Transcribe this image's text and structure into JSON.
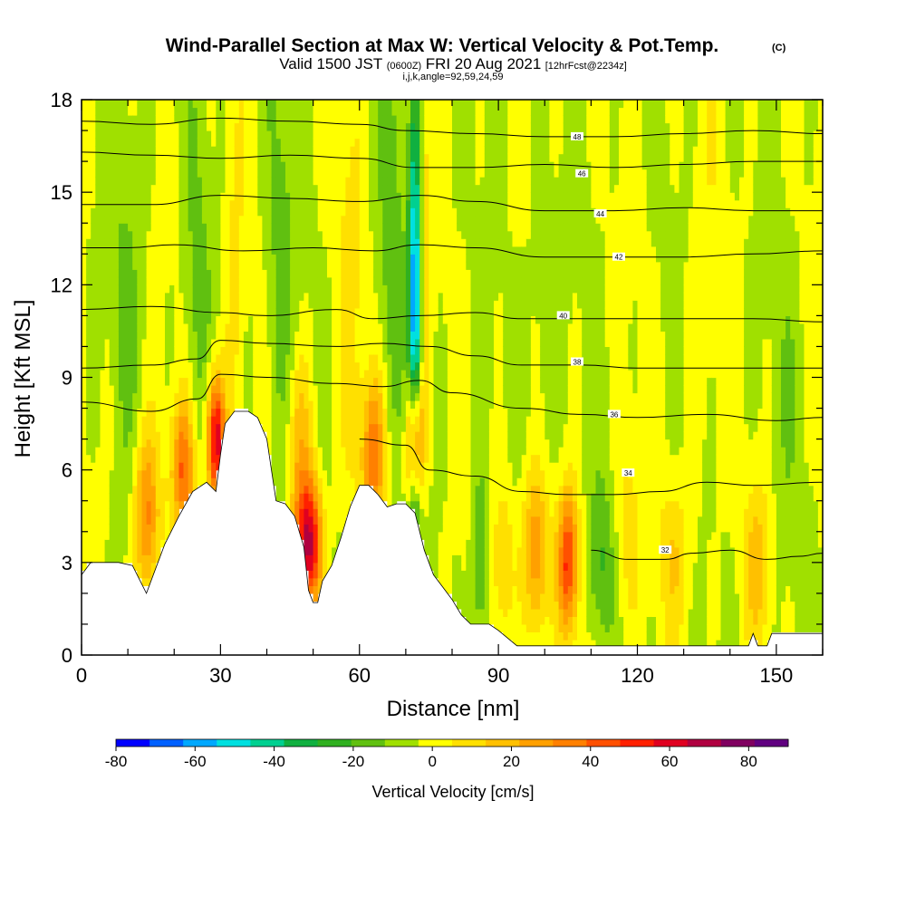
{
  "title": {
    "main": "Wind-Parallel Section at Max W: Vertical Velocity & Pot.Temp.",
    "main_suffix": "(C)",
    "valid_a": "Valid 1500 JST",
    "valid_b": "(0600Z)",
    "valid_c": "FRI 20 Aug 2021",
    "valid_d": "[12hrFcst@2234z]",
    "indices": "i,j,k,angle=92,59,24,59"
  },
  "colorbar": {
    "label": "Vertical Velocity [cm/s]",
    "ticks": [
      "-80",
      "-60",
      "-40",
      "-20",
      "0",
      "20",
      "40",
      "60",
      "80"
    ],
    "colors": [
      "#0000ff",
      "#0060ff",
      "#00a8ff",
      "#00e0e0",
      "#00d090",
      "#10b040",
      "#30b020",
      "#60c010",
      "#a0e000",
      "#ffff00",
      "#ffe000",
      "#ffc000",
      "#ffa000",
      "#ff8000",
      "#ff5000",
      "#ff2000",
      "#e00020",
      "#b00040",
      "#800060",
      "#600080"
    ]
  },
  "chart_data": {
    "type": "heatmap",
    "title": "Wind-Parallel Section at Max W: Vertical Velocity & Pot.Temp.",
    "xlabel": "Distance [nm]",
    "ylabel": "Height [Kft MSL]",
    "xlim": [
      0,
      160
    ],
    "ylim": [
      0,
      18
    ],
    "x_ticks": [
      "0",
      "30",
      "60",
      "90",
      "120",
      "150"
    ],
    "y_ticks": [
      "0",
      "3",
      "6",
      "9",
      "12",
      "15",
      "18"
    ],
    "fill_variable": "vertical velocity (cm/s)",
    "contour_variable": "potential temperature (C)",
    "terrain": [
      [
        0,
        2.6
      ],
      [
        2,
        3.0
      ],
      [
        8,
        3.0
      ],
      [
        11,
        2.9
      ],
      [
        14,
        2.0
      ],
      [
        16,
        2.8
      ],
      [
        18,
        3.6
      ],
      [
        21,
        4.5
      ],
      [
        24,
        5.3
      ],
      [
        27,
        5.6
      ],
      [
        29,
        5.3
      ],
      [
        30,
        6.5
      ],
      [
        31,
        7.5
      ],
      [
        33,
        7.9
      ],
      [
        36,
        7.9
      ],
      [
        38,
        7.7
      ],
      [
        40,
        7.0
      ],
      [
        41,
        6.0
      ],
      [
        42,
        5.0
      ],
      [
        44,
        4.9
      ],
      [
        46,
        4.5
      ],
      [
        48,
        3.5
      ],
      [
        49,
        2.1
      ],
      [
        50,
        1.7
      ],
      [
        51,
        1.7
      ],
      [
        52,
        2.4
      ],
      [
        54,
        2.9
      ],
      [
        56,
        3.8
      ],
      [
        58,
        4.8
      ],
      [
        60,
        5.5
      ],
      [
        62,
        5.5
      ],
      [
        64,
        5.2
      ],
      [
        66,
        4.8
      ],
      [
        68,
        4.9
      ],
      [
        70,
        4.9
      ],
      [
        72,
        4.6
      ],
      [
        74,
        3.4
      ],
      [
        76,
        2.6
      ],
      [
        78,
        2.2
      ],
      [
        80,
        1.8
      ],
      [
        82,
        1.3
      ],
      [
        84,
        1.0
      ],
      [
        86,
        1.0
      ],
      [
        88,
        1.0
      ],
      [
        90,
        0.8
      ],
      [
        94,
        0.3
      ],
      [
        100,
        0.3
      ],
      [
        120,
        0.3
      ],
      [
        144,
        0.3
      ],
      [
        145,
        0.7
      ],
      [
        146,
        0.3
      ],
      [
        148,
        0.3
      ],
      [
        149,
        0.7
      ],
      [
        160,
        0.7
      ]
    ],
    "theta_contours": [
      {
        "label": "32",
        "points": [
          [
            110,
            3.4
          ],
          [
            118,
            3.1
          ],
          [
            126,
            3.1
          ],
          [
            132,
            3.3
          ],
          [
            140,
            3.4
          ],
          [
            148,
            3.1
          ],
          [
            155,
            3.2
          ],
          [
            160,
            3.3
          ]
        ],
        "label_at": [
          126,
          3.4
        ]
      },
      {
        "label": "34",
        "points": [
          [
            60,
            7.0
          ],
          [
            70,
            6.8
          ],
          [
            75,
            6.0
          ],
          [
            85,
            5.8
          ],
          [
            95,
            5.3
          ],
          [
            105,
            5.2
          ],
          [
            115,
            5.2
          ],
          [
            125,
            5.3
          ],
          [
            135,
            5.6
          ],
          [
            145,
            5.5
          ],
          [
            160,
            5.6
          ]
        ],
        "label_at": [
          118,
          5.9
        ]
      },
      {
        "label": "36",
        "points": [
          [
            0,
            8.2
          ],
          [
            15,
            7.9
          ],
          [
            25,
            8.3
          ],
          [
            30,
            9.1
          ],
          [
            40,
            9.0
          ],
          [
            55,
            8.8
          ],
          [
            65,
            8.7
          ],
          [
            73,
            8.9
          ],
          [
            80,
            8.5
          ],
          [
            95,
            8.0
          ],
          [
            108,
            7.8
          ],
          [
            120,
            7.7
          ],
          [
            135,
            7.8
          ],
          [
            150,
            7.6
          ],
          [
            160,
            7.7
          ]
        ],
        "label_at": [
          115,
          7.8
        ]
      },
      {
        "label": "38",
        "points": [
          [
            0,
            9.3
          ],
          [
            15,
            9.4
          ],
          [
            25,
            9.6
          ],
          [
            30,
            10.2
          ],
          [
            40,
            10.1
          ],
          [
            55,
            10.0
          ],
          [
            65,
            10.1
          ],
          [
            75,
            10.0
          ],
          [
            85,
            9.7
          ],
          [
            95,
            9.4
          ],
          [
            108,
            9.4
          ],
          [
            120,
            9.3
          ],
          [
            140,
            9.3
          ],
          [
            160,
            9.3
          ]
        ],
        "label_at": [
          107,
          9.5
        ]
      },
      {
        "label": "40",
        "points": [
          [
            0,
            11.2
          ],
          [
            15,
            11.3
          ],
          [
            30,
            11.1
          ],
          [
            40,
            11.0
          ],
          [
            55,
            11.2
          ],
          [
            63,
            10.9
          ],
          [
            73,
            11.0
          ],
          [
            85,
            11.1
          ],
          [
            95,
            10.9
          ],
          [
            108,
            10.9
          ],
          [
            125,
            10.9
          ],
          [
            145,
            10.9
          ],
          [
            160,
            10.8
          ]
        ],
        "label_at": [
          104,
          11.0
        ]
      },
      {
        "label": "42",
        "points": [
          [
            0,
            13.2
          ],
          [
            10,
            13.2
          ],
          [
            20,
            13.3
          ],
          [
            35,
            13.1
          ],
          [
            50,
            13.2
          ],
          [
            63,
            13.1
          ],
          [
            73,
            13.3
          ],
          [
            85,
            13.2
          ],
          [
            100,
            12.9
          ],
          [
            115,
            12.9
          ],
          [
            130,
            12.9
          ],
          [
            145,
            13.0
          ],
          [
            160,
            13.1
          ]
        ],
        "label_at": [
          116,
          12.9
        ]
      },
      {
        "label": "44",
        "points": [
          [
            0,
            14.6
          ],
          [
            15,
            14.6
          ],
          [
            30,
            14.9
          ],
          [
            45,
            14.8
          ],
          [
            60,
            14.7
          ],
          [
            73,
            14.9
          ],
          [
            85,
            14.7
          ],
          [
            100,
            14.4
          ],
          [
            115,
            14.4
          ],
          [
            130,
            14.5
          ],
          [
            145,
            14.4
          ],
          [
            160,
            14.4
          ]
        ],
        "label_at": [
          112,
          14.3
        ]
      },
      {
        "label": "46",
        "points": [
          [
            0,
            16.3
          ],
          [
            15,
            16.2
          ],
          [
            30,
            16.1
          ],
          [
            45,
            16.2
          ],
          [
            60,
            16.1
          ],
          [
            72,
            15.8
          ],
          [
            85,
            15.8
          ],
          [
            100,
            15.9
          ],
          [
            115,
            15.8
          ],
          [
            130,
            15.9
          ],
          [
            145,
            16.0
          ],
          [
            160,
            16.0
          ]
        ],
        "label_at": [
          108,
          15.6
        ]
      },
      {
        "label": "48",
        "points": [
          [
            0,
            17.3
          ],
          [
            15,
            17.2
          ],
          [
            30,
            17.4
          ],
          [
            45,
            17.3
          ],
          [
            60,
            17.2
          ],
          [
            70,
            17.0
          ],
          [
            85,
            16.9
          ],
          [
            100,
            16.8
          ],
          [
            115,
            16.8
          ],
          [
            130,
            16.9
          ],
          [
            145,
            17.0
          ],
          [
            160,
            16.9
          ]
        ],
        "label_at": [
          107,
          16.8
        ]
      }
    ],
    "w_features": [
      {
        "x": 14,
        "y": 4.5,
        "sx": 2.0,
        "sy": 2.0,
        "w": 45
      },
      {
        "x": 22,
        "y": 6.0,
        "sx": 1.8,
        "sy": 1.6,
        "w": 50
      },
      {
        "x": 29,
        "y": 7.0,
        "sx": 1.4,
        "sy": 1.5,
        "w": 80
      },
      {
        "x": 33,
        "y": 12.0,
        "sx": 1.5,
        "sy": 5.5,
        "w": 12
      },
      {
        "x": 10,
        "y": 12.0,
        "sx": 2.5,
        "sy": 6.0,
        "w": -10
      },
      {
        "x": 25,
        "y": 11.0,
        "sx": 2.0,
        "sy": 5.0,
        "w": -12
      },
      {
        "x": 43,
        "y": 12.0,
        "sx": 2.2,
        "sy": 6.0,
        "w": -14
      },
      {
        "x": 49,
        "y": 3.6,
        "sx": 2.0,
        "sy": 1.5,
        "w": 85
      },
      {
        "x": 47,
        "y": 7.0,
        "sx": 2.0,
        "sy": 2.0,
        "w": 25
      },
      {
        "x": 58,
        "y": 12.0,
        "sx": 2.0,
        "sy": 6.0,
        "w": 12
      },
      {
        "x": 63,
        "y": 6.5,
        "sx": 1.8,
        "sy": 1.8,
        "w": 45
      },
      {
        "x": 67,
        "y": 13.0,
        "sx": 1.8,
        "sy": 5.0,
        "w": -15
      },
      {
        "x": 72,
        "y": 7.0,
        "sx": 1.3,
        "sy": 1.6,
        "w": 80
      },
      {
        "x": 72,
        "y": 10.5,
        "sx": 1.0,
        "sy": 5.5,
        "w": -75
      },
      {
        "x": 74,
        "y": 14.0,
        "sx": 1.2,
        "sy": 4.0,
        "w": 15
      },
      {
        "x": 86,
        "y": 3.0,
        "sx": 1.2,
        "sy": 2.0,
        "w": -25
      },
      {
        "x": 91,
        "y": 3.0,
        "sx": 1.8,
        "sy": 2.0,
        "w": 20
      },
      {
        "x": 98,
        "y": 3.3,
        "sx": 2.0,
        "sy": 2.0,
        "w": 40
      },
      {
        "x": 105,
        "y": 3.0,
        "sx": 1.6,
        "sy": 1.6,
        "w": 60
      },
      {
        "x": 112,
        "y": 3.0,
        "sx": 2.0,
        "sy": 1.8,
        "w": -20
      },
      {
        "x": 118,
        "y": 4.0,
        "sx": 2.0,
        "sy": 2.5,
        "w": 15
      },
      {
        "x": 128,
        "y": 3.2,
        "sx": 2.5,
        "sy": 1.8,
        "w": 18
      },
      {
        "x": 146,
        "y": 3.0,
        "sx": 2.0,
        "sy": 1.8,
        "w": 25
      },
      {
        "x": 100,
        "y": 10.0,
        "sx": 3.0,
        "sy": 4.0,
        "w": -8
      },
      {
        "x": 135,
        "y": 12.0,
        "sx": 3.0,
        "sy": 5.0,
        "w": 6
      },
      {
        "x": 152,
        "y": 8.0,
        "sx": 2.5,
        "sy": 4.0,
        "w": -6
      }
    ]
  }
}
